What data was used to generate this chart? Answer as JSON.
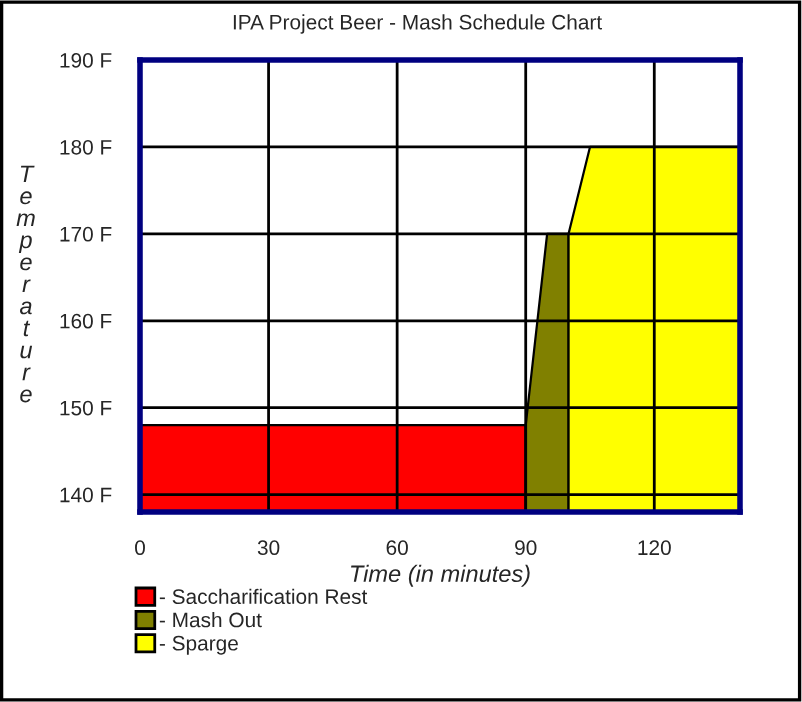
{
  "chart_data": {
    "type": "area",
    "title": "IPA Project Beer - Mash Schedule Chart",
    "xlabel": "Time (in minutes)",
    "ylabel": "Temperature",
    "series": [
      {
        "name": "- Saccharification Rest",
        "color": "#ff0000",
        "x": [
          0,
          90
        ],
        "values": [
          148,
          148
        ]
      },
      {
        "name": "- Mash Out",
        "color": "#808000",
        "x": [
          90,
          95,
          100
        ],
        "values": [
          148,
          170,
          170
        ]
      },
      {
        "name": "- Sparge",
        "color": "#ffff00",
        "x": [
          100,
          105,
          140
        ],
        "values": [
          170,
          180,
          180
        ]
      }
    ],
    "xlim": [
      0,
      140
    ],
    "xticks": [
      0,
      30,
      60,
      90,
      120
    ],
    "ylim": [
      138,
      190
    ],
    "yticks": [
      {
        "value": 140,
        "label": "140 F"
      },
      {
        "value": 150,
        "label": "150 F"
      },
      {
        "value": 160,
        "label": "160 F"
      },
      {
        "value": 170,
        "label": "170 F"
      },
      {
        "value": 180,
        "label": "180 F"
      },
      {
        "value": 190,
        "label": "190 F"
      }
    ],
    "grid": true,
    "legend": "bottom"
  }
}
